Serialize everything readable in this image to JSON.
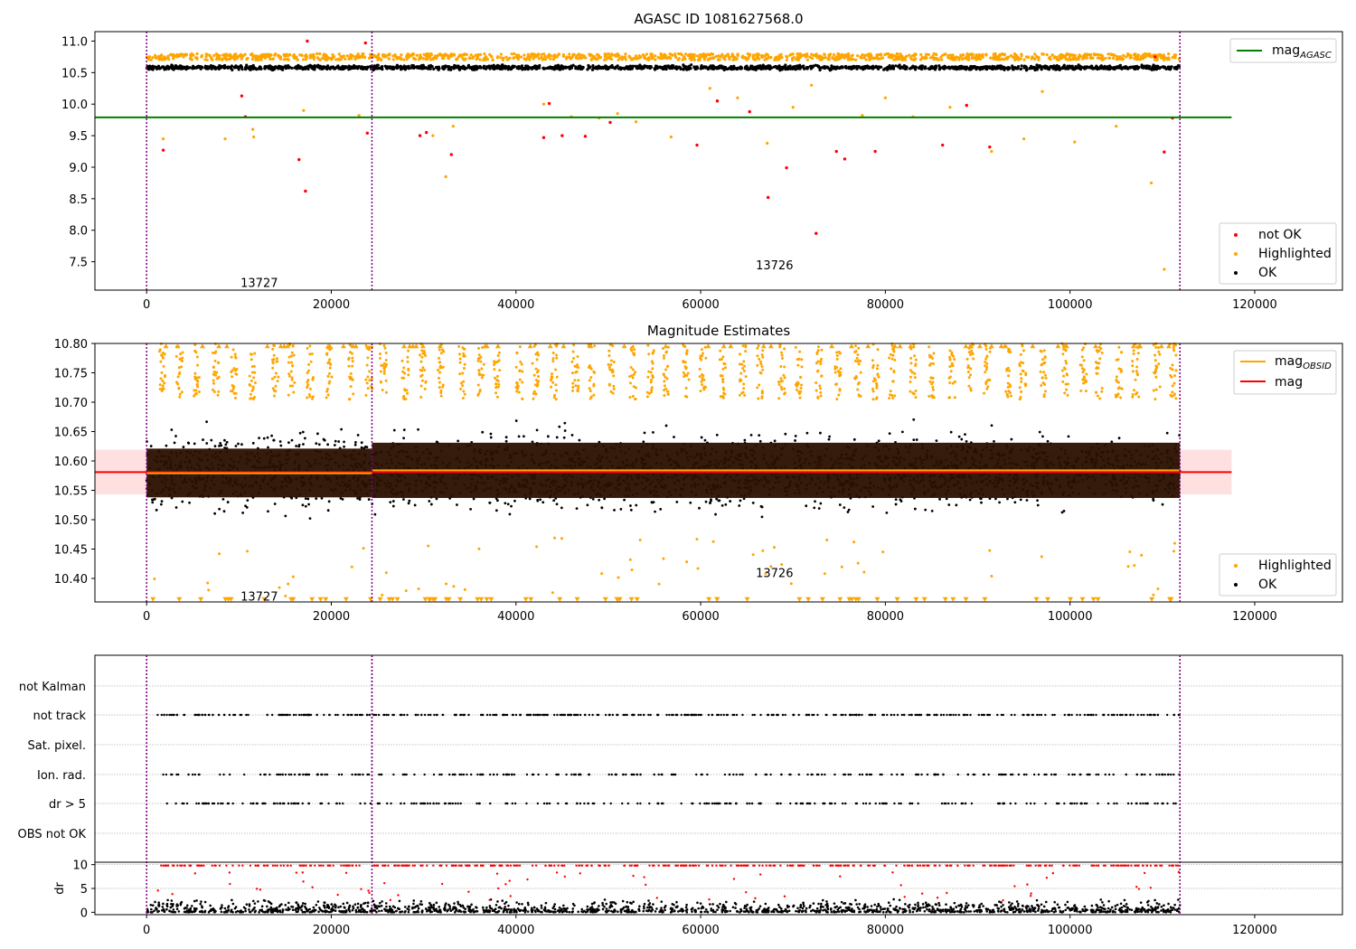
{
  "chart_data": [
    {
      "type": "scatter",
      "title": "AGASC ID 1081627568.0",
      "xlim": [
        -5600,
        129500
      ],
      "ylim": [
        7.05,
        11.15
      ],
      "xticks": [
        0,
        20000,
        40000,
        60000,
        80000,
        100000,
        120000
      ],
      "yticks": [
        7.5,
        8.0,
        8.5,
        9.0,
        9.5,
        10.0,
        10.5,
        11.0
      ],
      "ytick_labels": [
        "7.5",
        "8.0",
        "8.5",
        "9.0",
        "9.5",
        "10.0",
        "10.5",
        "11.0"
      ],
      "hline": {
        "name": "mag_AGASC",
        "y": 9.79,
        "x0": -5600,
        "x1": 117500,
        "color": "#008000"
      },
      "obsid_boundaries": [
        0,
        24400,
        111900
      ],
      "annotations": [
        {
          "text": "13727",
          "x": 12200,
          "y": 7.17
        },
        {
          "text": "13726",
          "x": 68000,
          "y": 7.45
        }
      ],
      "legend_lines": [
        {
          "label": "mag",
          "sub": "AGASC",
          "color": "#008000"
        }
      ],
      "legend_points": [
        {
          "label": "not OK",
          "color": "#ff0000"
        },
        {
          "label": "Highlighted",
          "color": "#ffa500"
        },
        {
          "label": "OK",
          "color": "#000000"
        }
      ],
      "series": [
        {
          "name": "OK",
          "color": "#000000",
          "band": {
            "center": 10.58,
            "half": 0.05
          },
          "x_range": [
            0,
            111900
          ]
        },
        {
          "name": "Highlighted",
          "color": "#ffa500",
          "y_band": [
            10.7,
            10.8
          ],
          "scatter_points": [
            [
              1800,
              9.45
            ],
            [
              8500,
              9.45
            ],
            [
              11500,
              9.6
            ],
            [
              11600,
              9.48
            ],
            [
              17000,
              9.9
            ],
            [
              23000,
              9.82
            ],
            [
              31000,
              9.5
            ],
            [
              32400,
              8.85
            ],
            [
              33200,
              9.65
            ],
            [
              43000,
              10.0
            ],
            [
              46000,
              9.8
            ],
            [
              49000,
              9.78
            ],
            [
              51000,
              9.85
            ],
            [
              53000,
              9.72
            ],
            [
              56800,
              9.48
            ],
            [
              61000,
              10.25
            ],
            [
              64000,
              10.1
            ],
            [
              67200,
              9.38
            ],
            [
              70000,
              9.95
            ],
            [
              72000,
              10.3
            ],
            [
              76000,
              10.8
            ],
            [
              77500,
              9.82
            ],
            [
              80000,
              10.1
            ],
            [
              83000,
              9.8
            ],
            [
              87000,
              9.95
            ],
            [
              91500,
              9.25
            ],
            [
              95000,
              9.45
            ],
            [
              97000,
              10.2
            ],
            [
              100500,
              9.4
            ],
            [
              105000,
              9.65
            ],
            [
              108800,
              8.75
            ],
            [
              110200,
              7.38
            ]
          ]
        },
        {
          "name": "not OK",
          "color": "#ff0000",
          "points": [
            [
              1800,
              9.27
            ],
            [
              10300,
              10.13
            ],
            [
              10700,
              9.8
            ],
            [
              16500,
              9.12
            ],
            [
              17200,
              8.62
            ],
            [
              17400,
              11.0
            ],
            [
              23700,
              10.97
            ],
            [
              23900,
              9.54
            ],
            [
              29600,
              9.5
            ],
            [
              30300,
              9.55
            ],
            [
              33000,
              9.2
            ],
            [
              43000,
              9.47
            ],
            [
              43600,
              10.01
            ],
            [
              45000,
              9.5
            ],
            [
              47500,
              9.49
            ],
            [
              50200,
              9.71
            ],
            [
              59600,
              9.35
            ],
            [
              61800,
              10.05
            ],
            [
              65300,
              9.88
            ],
            [
              67300,
              8.52
            ],
            [
              69300,
              8.99
            ],
            [
              72500,
              7.95
            ],
            [
              74700,
              9.25
            ],
            [
              75600,
              9.13
            ],
            [
              78900,
              9.25
            ],
            [
              86200,
              9.35
            ],
            [
              88800,
              9.98
            ],
            [
              91300,
              9.32
            ],
            [
              109200,
              10.75
            ],
            [
              110200,
              9.24
            ],
            [
              111100,
              9.78
            ]
          ]
        }
      ]
    },
    {
      "type": "scatter",
      "title": "Magnitude Estimates",
      "xlim": [
        -5600,
        129500
      ],
      "ylim": [
        10.36,
        10.8
      ],
      "xticks": [
        0,
        20000,
        40000,
        60000,
        80000,
        100000,
        120000
      ],
      "yticks": [
        10.4,
        10.45,
        10.5,
        10.55,
        10.6,
        10.65,
        10.7,
        10.75,
        10.8
      ],
      "ytick_labels": [
        "10.40",
        "10.45",
        "10.50",
        "10.55",
        "10.60",
        "10.65",
        "10.70",
        "10.75",
        "10.80"
      ],
      "obsid_boundaries": [
        0,
        24400,
        111900
      ],
      "annotations": [
        {
          "text": "13727",
          "x": 12200,
          "y": 10.37
        },
        {
          "text": "13726",
          "x": 68000,
          "y": 10.41
        }
      ],
      "mag_line": {
        "y": 10.581,
        "x0": -5600,
        "x1": 117500,
        "color": "#ff0000",
        "band": [
          10.543,
          10.619
        ]
      },
      "mag_obsid": [
        {
          "x0": 0,
          "x1": 24400,
          "y": 10.579,
          "band": [
            10.538,
            10.621
          ]
        },
        {
          "x0": 24400,
          "x1": 111900,
          "y": 10.584,
          "band": [
            10.537,
            10.631
          ]
        }
      ],
      "legend_lines": [
        {
          "label": "mag",
          "sub": "OBSID",
          "color": "#ffa500"
        },
        {
          "label": "mag",
          "sub": "",
          "color": "#ff0000"
        }
      ],
      "legend_points": [
        {
          "label": "Highlighted",
          "color": "#ffa500"
        },
        {
          "label": "OK",
          "color": "#000000"
        }
      ],
      "series": [
        {
          "name": "OK",
          "color": "#000000",
          "x_range": [
            0,
            111900
          ],
          "spread": [
            10.48,
            10.69
          ]
        },
        {
          "name": "Highlighted",
          "color": "#ffa500",
          "x_range": [
            0,
            111900
          ],
          "y_band": [
            10.7,
            10.8
          ]
        }
      ]
    },
    {
      "type": "scatter",
      "title": "",
      "xlim": [
        -5600,
        129500
      ],
      "category_rows": [
        "not Kalman",
        "not track",
        "Sat. pixel.",
        "Ion. rad.",
        "dr > 5",
        "OBS not OK"
      ],
      "obsid_boundaries": [
        0,
        24400,
        111900
      ],
      "series": [
        {
          "name": "not track",
          "color": "#000000",
          "x_range": [
            1000,
            111900
          ]
        },
        {
          "name": "Ion. rad.",
          "color": "#000000",
          "x_range": [
            1800,
            111900
          ]
        },
        {
          "name": "dr > 5",
          "color": "#000000",
          "x_range": [
            1800,
            111900
          ]
        }
      ]
    },
    {
      "type": "scatter",
      "title": "",
      "xlim": [
        -5600,
        129500
      ],
      "ylim": [
        -0.5,
        10.5
      ],
      "ylabel": "dr",
      "xticks": [
        0,
        20000,
        40000,
        60000,
        80000,
        100000,
        120000
      ],
      "yticks": [
        0,
        5,
        10
      ],
      "ytick_labels": [
        "0",
        "5",
        "10"
      ],
      "obsid_boundaries": [
        0,
        24400,
        111900
      ],
      "series": [
        {
          "name": "OK",
          "color": "#000000",
          "x_range": [
            0,
            111900
          ],
          "spread": [
            0,
            2.2
          ]
        },
        {
          "name": "not OK",
          "color": "#ff0000",
          "x_range": [
            0,
            111900
          ],
          "y": 9.8
        }
      ]
    }
  ]
}
